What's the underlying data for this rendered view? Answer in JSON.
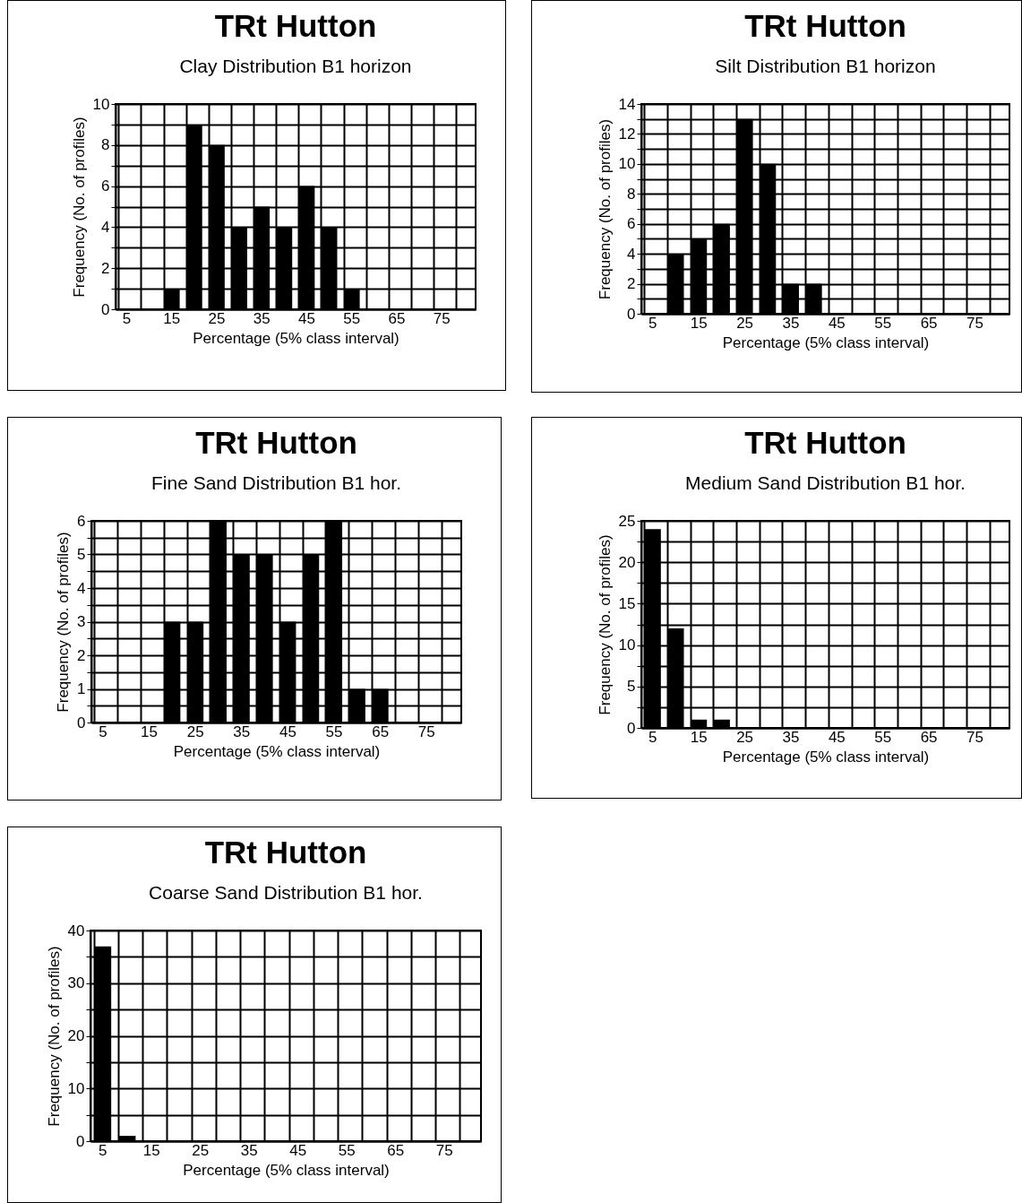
{
  "chart_data": [
    {
      "type": "bar",
      "title": "TRt  Hutton",
      "subtitle": "Clay Distribution B1 horizon",
      "xlabel": "Percentage (5% class interval)",
      "ylabel": "Frequency (No. of profiles)",
      "categories": [
        "5",
        null,
        "15",
        null,
        "25",
        null,
        "35",
        null,
        "45",
        null,
        "55",
        null,
        "65",
        null,
        "75",
        null
      ],
      "values": [
        0,
        0,
        1,
        9,
        8,
        4,
        5,
        4,
        6,
        4,
        1,
        0,
        0,
        0,
        0,
        0
      ],
      "color": "#000000",
      "ylim": [
        0,
        10
      ],
      "yticks": [
        0,
        {
          "value": 1,
          "label": null
        },
        2,
        {
          "value": 3,
          "label": null
        },
        4,
        {
          "value": 5,
          "label": null
        },
        6,
        {
          "value": 7,
          "label": null
        },
        8,
        {
          "value": 9,
          "label": null
        },
        10
      ],
      "grid": true
    },
    {
      "type": "bar",
      "title": "TRt  Hutton",
      "subtitle": "Silt Distribution B1 horizon",
      "xlabel": "Percentage (5% class interval)",
      "ylabel": "Frequency (No. of profiles)",
      "categories": [
        "5",
        null,
        "15",
        null,
        "25",
        null,
        "35",
        null,
        "45",
        null,
        "55",
        null,
        "65",
        null,
        "75",
        null
      ],
      "values": [
        0,
        4,
        5,
        6,
        13,
        10,
        2,
        2,
        0,
        0,
        0,
        0,
        0,
        0,
        0,
        0
      ],
      "color": "#000000",
      "ylim": [
        0,
        14
      ],
      "yticks": [
        0,
        {
          "value": 1,
          "label": null
        },
        2,
        {
          "value": 3,
          "label": null
        },
        4,
        {
          "value": 5,
          "label": null
        },
        6,
        {
          "value": 7,
          "label": null
        },
        8,
        {
          "value": 9,
          "label": null
        },
        10,
        {
          "value": 11,
          "label": null
        },
        12,
        {
          "value": 13,
          "label": null
        },
        14
      ],
      "grid": true
    },
    {
      "type": "bar",
      "title": "TRt Hutton",
      "subtitle": "Fine Sand Distribution B1 hor.",
      "xlabel": "Percentage (5% class interval)",
      "ylabel": "Frequency (No. of profiles)",
      "categories": [
        "5",
        null,
        "15",
        null,
        "25",
        null,
        "35",
        null,
        "45",
        null,
        "55",
        null,
        "65",
        null,
        "75",
        null
      ],
      "values": [
        0,
        0,
        0,
        3,
        3,
        6,
        5,
        5,
        3,
        5,
        6,
        1,
        1,
        0,
        0,
        0
      ],
      "color": "#000000",
      "ylim": [
        0,
        6
      ],
      "yticks": [
        0,
        {
          "value": 0.5,
          "label": null
        },
        1,
        {
          "value": 1.5,
          "label": null
        },
        2,
        {
          "value": 2.5,
          "label": null
        },
        3,
        {
          "value": 3.5,
          "label": null
        },
        4,
        {
          "value": 4.5,
          "label": null
        },
        5,
        {
          "value": 5.5,
          "label": null
        },
        6
      ],
      "grid": true
    },
    {
      "type": "bar",
      "title": "TRt  Hutton",
      "subtitle": "Medium Sand Distribution B1 hor.",
      "xlabel": "Percentage (5% class interval)",
      "ylabel": "Frequency (No. of profiles)",
      "categories": [
        "5",
        null,
        "15",
        null,
        "25",
        null,
        "35",
        null,
        "45",
        null,
        "55",
        null,
        "65",
        null,
        "75",
        null
      ],
      "values": [
        24,
        12,
        1,
        1,
        0,
        0,
        0,
        0,
        0,
        0,
        0,
        0,
        0,
        0,
        0,
        0
      ],
      "color": "#000000",
      "ylim": [
        0,
        25
      ],
      "yticks": [
        0,
        {
          "value": 2.5,
          "label": null
        },
        5,
        {
          "value": 7.5,
          "label": null
        },
        10,
        {
          "value": 12.5,
          "label": null
        },
        15,
        {
          "value": 17.5,
          "label": null
        },
        20,
        {
          "value": 22.5,
          "label": null
        },
        25
      ],
      "grid": true
    },
    {
      "type": "bar",
      "title": "TRt  Hutton",
      "subtitle": "Coarse Sand Distribution B1 hor.",
      "xlabel": "Percentage (5% class interval)",
      "ylabel": "Frequency (No. of profiles)",
      "categories": [
        "5",
        null,
        "15",
        null,
        "25",
        null,
        "35",
        null,
        "45",
        null,
        "55",
        null,
        "65",
        null,
        "75",
        null
      ],
      "values": [
        37,
        1,
        0,
        0,
        0,
        0,
        0,
        0,
        0,
        0,
        0,
        0,
        0,
        0,
        0,
        0
      ],
      "color": "#000000",
      "ylim": [
        0,
        40
      ],
      "yticks": [
        0,
        {
          "value": 5,
          "label": null
        },
        10,
        {
          "value": 15,
          "label": null
        },
        20,
        {
          "value": 25,
          "label": null
        },
        30,
        {
          "value": 35,
          "label": null
        },
        40
      ],
      "grid": true
    }
  ]
}
